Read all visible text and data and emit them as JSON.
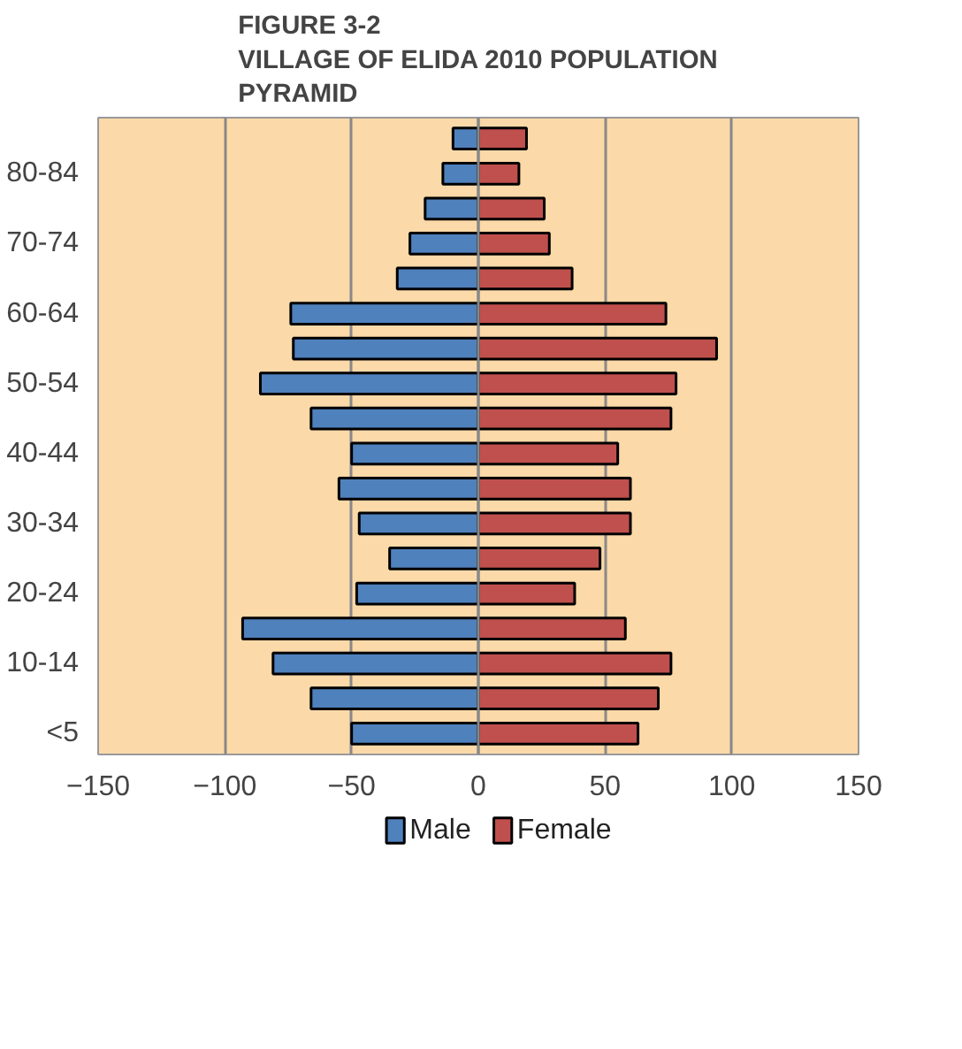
{
  "chart_data": {
    "type": "bar",
    "orientation": "horizontal",
    "title": "FIGURE 3-2\nVILLAGE OF ELIDA 2010 POPULATION\nPYRAMID",
    "categories": [
      null,
      "80-84",
      null,
      "70-74",
      null,
      "60-64",
      null,
      "50-54",
      null,
      "40-44",
      null,
      "30-34",
      null,
      "20-24",
      null,
      "10-14",
      null,
      "<5"
    ],
    "series": [
      {
        "name": "Male",
        "color": "#4f81bd",
        "values": [
          -10,
          -14,
          -21,
          -27,
          -32,
          -74,
          -73,
          -86,
          -66,
          -50,
          -55,
          -47,
          -35,
          -48,
          -93,
          -81,
          -66,
          -50
        ]
      },
      {
        "name": "Female",
        "color": "#c0504d",
        "values": [
          19,
          16,
          26,
          28,
          37,
          74,
          94,
          78,
          76,
          55,
          60,
          60,
          48,
          38,
          58,
          76,
          71,
          63
        ]
      }
    ],
    "xlim": [
      -150,
      150
    ],
    "xticks": [
      -150,
      -100,
      -50,
      0,
      50,
      100,
      150
    ],
    "stacked": true,
    "grid": "x",
    "legend": "bottom"
  }
}
